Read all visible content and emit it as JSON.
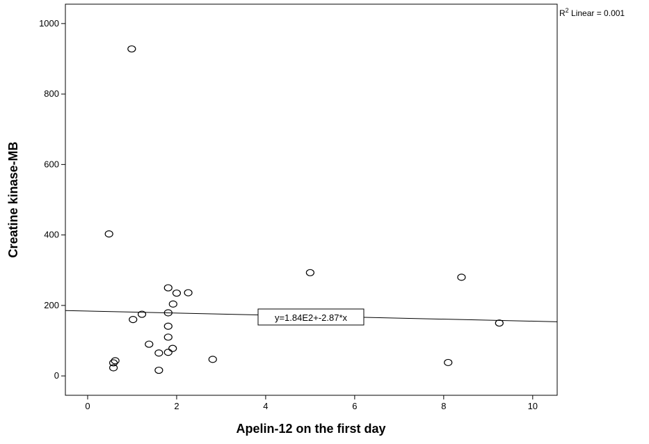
{
  "chart_data": {
    "type": "scatter",
    "xlabel": "Apelin-12 on the first day",
    "ylabel": "Creatine kinase-MB",
    "xlim": [
      -0.5,
      10.55
    ],
    "ylim": [
      -55,
      1055
    ],
    "x_ticks": [
      "0",
      "2",
      "4",
      "6",
      "8",
      "10"
    ],
    "y_ticks": [
      "0",
      "200",
      "400",
      "600",
      "800",
      "1000"
    ],
    "grid": false,
    "fit_line": {
      "intercept": 184,
      "slope": -2.87,
      "equation": "y=1.84E2+-2.87*x"
    },
    "r2_label": {
      "prefix": "R",
      "sup": "2",
      "suffix": " Linear = 0.001"
    },
    "points": [
      {
        "x": 0.99,
        "y": 928
      },
      {
        "x": 0.48,
        "y": 403
      },
      {
        "x": 5.0,
        "y": 293
      },
      {
        "x": 8.4,
        "y": 280
      },
      {
        "x": 1.81,
        "y": 250
      },
      {
        "x": 2.0,
        "y": 235
      },
      {
        "x": 2.26,
        "y": 236
      },
      {
        "x": 1.92,
        "y": 204
      },
      {
        "x": 1.22,
        "y": 175
      },
      {
        "x": 1.81,
        "y": 179
      },
      {
        "x": 1.02,
        "y": 160
      },
      {
        "x": 9.25,
        "y": 150
      },
      {
        "x": 1.81,
        "y": 141
      },
      {
        "x": 1.81,
        "y": 110
      },
      {
        "x": 1.38,
        "y": 90
      },
      {
        "x": 1.91,
        "y": 78
      },
      {
        "x": 1.6,
        "y": 65
      },
      {
        "x": 1.81,
        "y": 67
      },
      {
        "x": 2.81,
        "y": 47
      },
      {
        "x": 0.62,
        "y": 43
      },
      {
        "x": 0.58,
        "y": 37
      },
      {
        "x": 8.1,
        "y": 38
      },
      {
        "x": 0.58,
        "y": 23
      },
      {
        "x": 1.6,
        "y": 16
      }
    ]
  }
}
